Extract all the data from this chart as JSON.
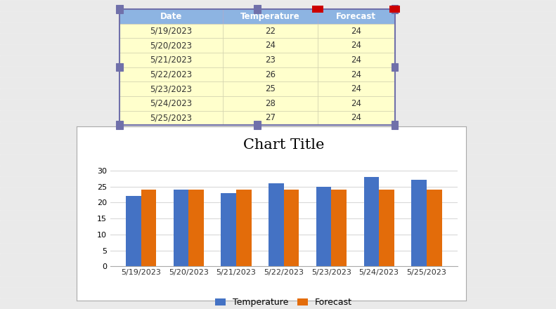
{
  "dates": [
    "5/19/2023",
    "5/20/2023",
    "5/21/2023",
    "5/22/2023",
    "5/23/2023",
    "5/24/2023",
    "5/25/2023"
  ],
  "temperature": [
    22,
    24,
    23,
    26,
    25,
    28,
    27
  ],
  "forecast": [
    24,
    24,
    24,
    24,
    24,
    24,
    24
  ],
  "title": "Chart Title",
  "temp_color": "#4472C4",
  "forecast_color": "#E36C0A",
  "chart_area_bg": "#FFFFFF",
  "grid_color": "#D9D9D9",
  "ylim": [
    0,
    35
  ],
  "yticks": [
    0,
    5,
    10,
    15,
    20,
    25,
    30
  ],
  "legend_labels": [
    "Temperature",
    "Forecast"
  ],
  "title_fontsize": 15,
  "tick_fontsize": 8,
  "legend_fontsize": 9,
  "table_header_bg": "#8DB4E2",
  "table_cell_bg": "#FFFFCC",
  "outer_bg": "#EAEAEA",
  "excel_line_color": "#D0D0D0",
  "table_border_purple": "#7070AA",
  "table_border_red": "#CC3333",
  "chart_border": "#AAAAAA"
}
